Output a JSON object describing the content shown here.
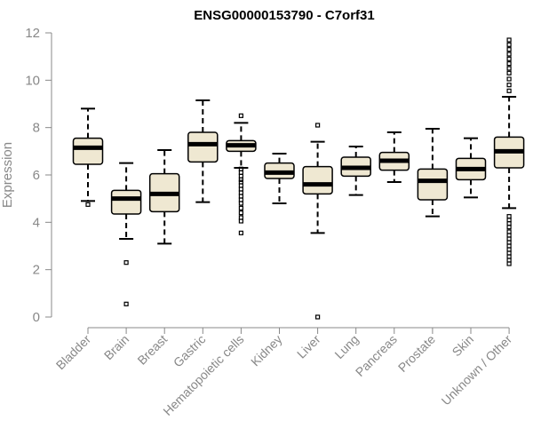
{
  "chart_data": {
    "type": "boxplot",
    "title": "ENSG00000153790 - C7orf31",
    "ylabel": "Expression",
    "xlabel": "",
    "ylim": [
      0,
      12
    ],
    "yticks": [
      0,
      2,
      4,
      6,
      8,
      10,
      12
    ],
    "categories": [
      "Bladder",
      "Brain",
      "Breast",
      "Gastric",
      "Hematopoietic cells",
      "Kidney",
      "Liver",
      "Lung",
      "Pancreas",
      "Prostate",
      "Skin",
      "Unknown / Other"
    ],
    "boxes": [
      {
        "min": 4.9,
        "q1": 6.45,
        "median": 7.15,
        "q3": 7.55,
        "max": 8.8,
        "outliers": [
          4.75
        ]
      },
      {
        "min": 3.3,
        "q1": 4.35,
        "median": 5.0,
        "q3": 5.35,
        "max": 6.5,
        "outliers": [
          2.3,
          0.55
        ]
      },
      {
        "min": 3.1,
        "q1": 4.45,
        "median": 5.2,
        "q3": 6.05,
        "max": 7.05,
        "outliers": []
      },
      {
        "min": 4.85,
        "q1": 6.55,
        "median": 7.3,
        "q3": 7.8,
        "max": 9.15,
        "outliers": []
      },
      {
        "min": 6.3,
        "q1": 7.0,
        "median": 7.25,
        "q3": 7.45,
        "max": 8.2,
        "outliers": [
          8.5,
          6.25,
          6.1,
          5.95,
          5.8,
          5.7,
          5.55,
          5.4,
          5.25,
          5.1,
          4.95,
          4.8,
          4.6,
          4.4,
          4.2,
          4.05,
          3.55
        ]
      },
      {
        "min": 4.8,
        "q1": 5.85,
        "median": 6.1,
        "q3": 6.5,
        "max": 6.9,
        "outliers": []
      },
      {
        "min": 3.55,
        "q1": 5.2,
        "median": 5.6,
        "q3": 6.35,
        "max": 7.4,
        "outliers": [
          8.1,
          0.0
        ]
      },
      {
        "min": 5.15,
        "q1": 5.95,
        "median": 6.3,
        "q3": 6.75,
        "max": 7.2,
        "outliers": []
      },
      {
        "min": 5.7,
        "q1": 6.2,
        "median": 6.6,
        "q3": 6.95,
        "max": 7.8,
        "outliers": []
      },
      {
        "min": 4.25,
        "q1": 4.95,
        "median": 5.75,
        "q3": 6.25,
        "max": 7.95,
        "outliers": []
      },
      {
        "min": 5.05,
        "q1": 5.8,
        "median": 6.25,
        "q3": 6.7,
        "max": 7.55,
        "outliers": []
      },
      {
        "min": 4.6,
        "q1": 6.3,
        "median": 7.0,
        "q3": 7.6,
        "max": 9.3,
        "outliers": [
          11.7,
          11.5,
          11.3,
          11.1,
          10.9,
          10.7,
          10.5,
          10.3,
          10.05,
          9.8,
          9.55,
          4.25,
          4.1,
          3.95,
          3.8,
          3.6,
          3.45,
          3.3,
          3.15,
          3.0,
          2.85,
          2.7,
          2.55,
          2.4,
          2.25
        ]
      }
    ]
  }
}
